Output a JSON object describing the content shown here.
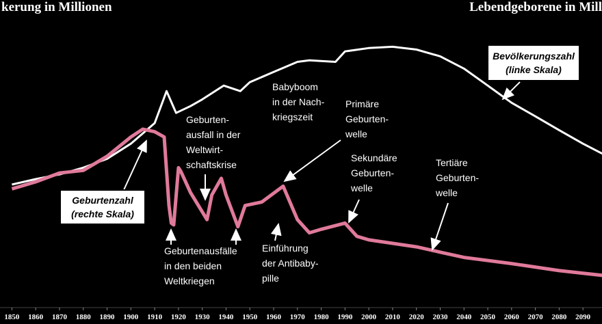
{
  "chart_data": {
    "type": "line",
    "y_label": "kerung in Millionen",
    "y2_label": "Lebendgeborene in Mill",
    "xlim": [
      1845,
      2098
    ],
    "xticks": [
      1850,
      1860,
      1870,
      1880,
      1890,
      1900,
      1910,
      1920,
      1930,
      1940,
      1950,
      1960,
      1970,
      1980,
      1990,
      2000,
      2010,
      2020,
      2030,
      2040,
      2050,
      2060,
      2070,
      2080,
      2090
    ],
    "ylim": [
      0,
      90
    ],
    "y2lim": [
      0.15,
      3.3
    ],
    "series": [
      {
        "name": "Bevölkerungszahl",
        "scale": "(linke Skala)",
        "color": "#ffffff",
        "x": [
          1850,
          1860,
          1870,
          1880,
          1890,
          1900,
          1910,
          1915,
          1919,
          1925,
          1930,
          1939,
          1946,
          1950,
          1960,
          1970,
          1975,
          1986,
          1990,
          2000,
          2010,
          2020,
          2030,
          2040,
          2050,
          2060,
          2070,
          2080,
          2090,
          2100
        ],
        "values": [
          35.1,
          36.9,
          38.4,
          40.6,
          43.5,
          48.4,
          55.1,
          65.5,
          58.4,
          60.6,
          62.8,
          67.3,
          65.5,
          68.4,
          71.7,
          75.0,
          75.5,
          75.0,
          78.4,
          79.5,
          79.9,
          79.0,
          76.8,
          72.8,
          67.3,
          61.7,
          57.3,
          52.8,
          48.4,
          44.4
        ]
      },
      {
        "name": "Geburtenzahl",
        "scale": "(rechte Skala)",
        "color": "#e07a9a",
        "axis": "y2",
        "x": [
          1850,
          1860,
          1870,
          1880,
          1890,
          1900,
          1905,
          1910,
          1914,
          1916,
          1917,
          1918,
          1920,
          1921,
          1925,
          1932,
          1934,
          1938,
          1940,
          1945,
          1948,
          1955,
          1964,
          1970,
          1975,
          1980,
          1990,
          1995,
          2000,
          2010,
          2020,
          2030,
          2040,
          2060,
          2080,
          2100
        ],
        "values": [
          1.33,
          1.41,
          1.51,
          1.54,
          1.7,
          1.92,
          2.01,
          1.98,
          1.92,
          1.14,
          0.94,
          0.92,
          1.57,
          1.53,
          1.29,
          0.98,
          1.26,
          1.45,
          1.26,
          0.9,
          1.14,
          1.18,
          1.36,
          0.98,
          0.83,
          0.87,
          0.94,
          0.79,
          0.75,
          0.71,
          0.67,
          0.61,
          0.55,
          0.48,
          0.4,
          0.34
        ]
      }
    ],
    "annotations": [
      [
        "Babyboom",
        "in der Nach-",
        "kriegszeit"
      ],
      [
        "Geburten-",
        "ausfall in der",
        "Weltwirt-",
        "schaftskrise"
      ],
      [
        "Primäre",
        "Geburten-",
        "welle"
      ],
      [
        "Sekundäre",
        "Geburten-",
        "welle"
      ],
      [
        "Tertiäre",
        "Geburten-",
        "welle"
      ],
      [
        "Geburtenausfälle",
        "in den beiden",
        "Weltkriegen"
      ],
      [
        "Einführung",
        "der Antibaby-",
        "pille"
      ]
    ]
  }
}
